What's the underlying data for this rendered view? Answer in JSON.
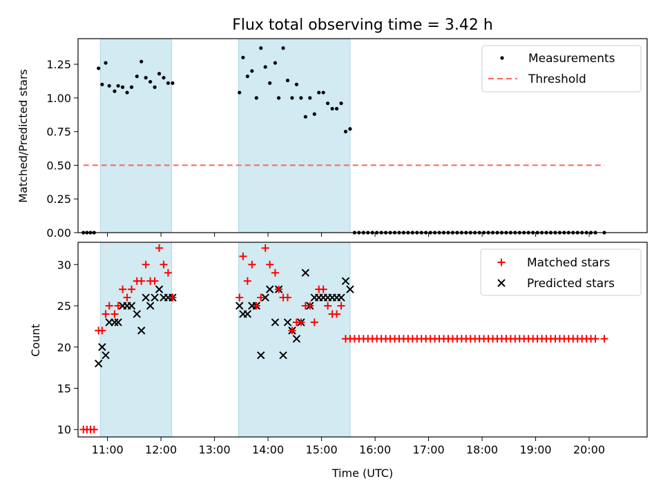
{
  "figure_title": "Flux total observing time = 3.42 h",
  "colors": {
    "measurement": "#000000",
    "threshold": "#ff6060",
    "matched": "#ff0000",
    "predicted": "#000000",
    "shade": "#add8e6"
  },
  "chart_data": [
    {
      "type": "scatter",
      "title": "Flux total observing time = 3.42 h",
      "ylabel": "Matched/Predicted stars",
      "xlabel": "",
      "xlim": [
        "10:27",
        "21:05"
      ],
      "ylim": [
        0,
        1.44
      ],
      "yticks": [
        0.0,
        0.25,
        0.5,
        0.75,
        1.0,
        1.25
      ],
      "ytick_labels": [
        "0.00",
        "0.25",
        "0.50",
        "0.75",
        "1.00",
        "1.25"
      ],
      "legend_position": "top-right",
      "shaded_intervals": [
        [
          "10:52",
          "12:12"
        ],
        [
          "13:27",
          "15:32"
        ]
      ],
      "series": [
        {
          "name": "Measurements",
          "marker": "dot",
          "x": [
            "10:33",
            "10:37",
            "10:41",
            "10:45",
            "10:50",
            "10:54",
            "10:58",
            "11:02",
            "11:08",
            "11:12",
            "11:17",
            "11:22",
            "11:27",
            "11:33",
            "11:38",
            "11:43",
            "11:48",
            "11:53",
            "11:58",
            "12:03",
            "12:08",
            "12:13",
            "13:28",
            "13:32",
            "13:37",
            "13:42",
            "13:47",
            "13:52",
            "13:57",
            "14:02",
            "14:08",
            "14:12",
            "14:17",
            "14:22",
            "14:27",
            "14:32",
            "14:37",
            "14:42",
            "14:47",
            "14:52",
            "14:57",
            "15:02",
            "15:07",
            "15:12",
            "15:17",
            "15:22",
            "15:27",
            "15:32",
            "15:37",
            "15:42",
            "15:47",
            "15:52",
            "15:57",
            "16:02",
            "16:07",
            "16:12",
            "16:17",
            "16:22",
            "16:27",
            "16:32",
            "16:37",
            "16:42",
            "16:47",
            "16:52",
            "16:57",
            "17:02",
            "17:07",
            "17:12",
            "17:17",
            "17:22",
            "17:27",
            "17:32",
            "17:37",
            "17:42",
            "17:47",
            "17:52",
            "17:57",
            "18:02",
            "18:07",
            "18:12",
            "18:17",
            "18:22",
            "18:27",
            "18:32",
            "18:37",
            "18:42",
            "18:47",
            "18:52",
            "18:57",
            "19:02",
            "19:07",
            "19:12",
            "19:17",
            "19:22",
            "19:27",
            "19:32",
            "19:37",
            "19:42",
            "19:47",
            "19:52",
            "19:57",
            "20:02",
            "20:07",
            "20:17"
          ],
          "y": [
            0,
            0,
            0,
            0,
            1.22,
            1.1,
            1.26,
            1.09,
            1.05,
            1.09,
            1.08,
            1.04,
            1.08,
            1.16,
            1.27,
            1.15,
            1.12,
            1.08,
            1.18,
            1.15,
            1.11,
            1.11,
            1.04,
            1.3,
            1.16,
            1.2,
            1.0,
            1.37,
            1.23,
            1.11,
            1.26,
            1.0,
            1.37,
            1.13,
            1.0,
            1.1,
            1.0,
            0.86,
            1.0,
            0.88,
            1.04,
            1.04,
            0.96,
            0.92,
            0.92,
            0.96,
            0.75,
            0.77,
            0,
            0,
            0,
            0,
            0,
            0,
            0,
            0,
            0,
            0,
            0,
            0,
            0,
            0,
            0,
            0,
            0,
            0,
            0,
            0,
            0,
            0,
            0,
            0,
            0,
            0,
            0,
            0,
            0,
            0,
            0,
            0,
            0,
            0,
            0,
            0,
            0,
            0,
            0,
            0,
            0,
            0,
            0,
            0,
            0,
            0,
            0,
            0,
            0,
            0,
            0,
            0,
            0,
            0,
            0,
            0
          ]
        },
        {
          "name": "Threshold",
          "type": "line",
          "style": "dashed",
          "x": [
            "10:33",
            "20:17"
          ],
          "y": [
            0.5,
            0.5
          ]
        }
      ]
    },
    {
      "type": "scatter",
      "ylabel": "Count",
      "xlabel": "Time (UTC)",
      "xlim": [
        "10:27",
        "21:05"
      ],
      "ylim": [
        9.1,
        32.7
      ],
      "yticks": [
        10,
        15,
        20,
        25,
        30
      ],
      "ytick_labels": [
        "10",
        "15",
        "20",
        "25",
        "30"
      ],
      "xticks": [
        "11:00",
        "12:00",
        "13:00",
        "14:00",
        "15:00",
        "16:00",
        "17:00",
        "18:00",
        "19:00",
        "20:00"
      ],
      "legend_position": "top-right",
      "shaded_intervals": [
        [
          "10:52",
          "12:12"
        ],
        [
          "13:27",
          "15:32"
        ]
      ],
      "series": [
        {
          "name": "Matched stars",
          "marker": "plus",
          "x": [
            "10:33",
            "10:37",
            "10:41",
            "10:45",
            "10:50",
            "10:54",
            "10:58",
            "11:02",
            "11:08",
            "11:12",
            "11:17",
            "11:22",
            "11:27",
            "11:33",
            "11:38",
            "11:43",
            "11:48",
            "11:53",
            "11:58",
            "12:03",
            "12:08",
            "12:13",
            "13:28",
            "13:32",
            "13:37",
            "13:42",
            "13:47",
            "13:52",
            "13:57",
            "14:02",
            "14:08",
            "14:12",
            "14:17",
            "14:22",
            "14:27",
            "14:32",
            "14:37",
            "14:42",
            "14:47",
            "14:52",
            "14:57",
            "15:02",
            "15:07",
            "15:12",
            "15:17",
            "15:22",
            "15:27",
            "15:32",
            "15:37",
            "15:42",
            "15:47",
            "15:52",
            "15:57",
            "16:02",
            "16:07",
            "16:12",
            "16:17",
            "16:22",
            "16:27",
            "16:32",
            "16:37",
            "16:42",
            "16:47",
            "16:52",
            "16:57",
            "17:02",
            "17:07",
            "17:12",
            "17:17",
            "17:22",
            "17:27",
            "17:32",
            "17:37",
            "17:42",
            "17:47",
            "17:52",
            "17:57",
            "18:02",
            "18:07",
            "18:12",
            "18:17",
            "18:22",
            "18:27",
            "18:32",
            "18:37",
            "18:42",
            "18:47",
            "18:52",
            "18:57",
            "19:02",
            "19:07",
            "19:12",
            "19:17",
            "19:22",
            "19:27",
            "19:32",
            "19:37",
            "19:42",
            "19:47",
            "19:52",
            "19:57",
            "20:02",
            "20:07",
            "20:17"
          ],
          "y": [
            10,
            10,
            10,
            10,
            22,
            22,
            24,
            25,
            24,
            25,
            27,
            26,
            27,
            28,
            28,
            30,
            28,
            28,
            32,
            30,
            29,
            26,
            26,
            31,
            28,
            30,
            25,
            26,
            32,
            30,
            29,
            27,
            26,
            26,
            22,
            23,
            23,
            25,
            25,
            23,
            27,
            27,
            25,
            24,
            24,
            25,
            21,
            21,
            21,
            21,
            21,
            21,
            21,
            21,
            21,
            21,
            21,
            21,
            21,
            21,
            21,
            21,
            21,
            21,
            21,
            21,
            21,
            21,
            21,
            21,
            21,
            21,
            21,
            21,
            21,
            21,
            21,
            21,
            21,
            21,
            21,
            21,
            21,
            21,
            21,
            21,
            21,
            21,
            21,
            21,
            21,
            21,
            21,
            21,
            21,
            21,
            21,
            21,
            21,
            21,
            21,
            21,
            21,
            21
          ]
        },
        {
          "name": "Predicted stars",
          "marker": "x",
          "x": [
            "10:50",
            "10:54",
            "10:58",
            "11:02",
            "11:08",
            "11:12",
            "11:17",
            "11:22",
            "11:27",
            "11:33",
            "11:38",
            "11:43",
            "11:48",
            "11:53",
            "11:58",
            "12:03",
            "12:08",
            "12:13",
            "13:28",
            "13:32",
            "13:37",
            "13:42",
            "13:47",
            "13:52",
            "13:57",
            "14:02",
            "14:08",
            "14:12",
            "14:17",
            "14:22",
            "14:27",
            "14:32",
            "14:37",
            "14:42",
            "14:47",
            "14:52",
            "14:57",
            "15:02",
            "15:07",
            "15:12",
            "15:17",
            "15:22",
            "15:27",
            "15:32"
          ],
          "y": [
            18,
            20,
            19,
            23,
            23,
            23,
            25,
            25,
            25,
            24,
            22,
            26,
            25,
            26,
            27,
            26,
            26,
            26,
            25,
            24,
            24,
            25,
            25,
            19,
            26,
            27,
            23,
            27,
            19,
            23,
            22,
            21,
            23,
            29,
            25,
            26,
            26,
            26,
            26,
            26,
            26,
            26,
            28,
            27
          ]
        }
      ]
    }
  ]
}
